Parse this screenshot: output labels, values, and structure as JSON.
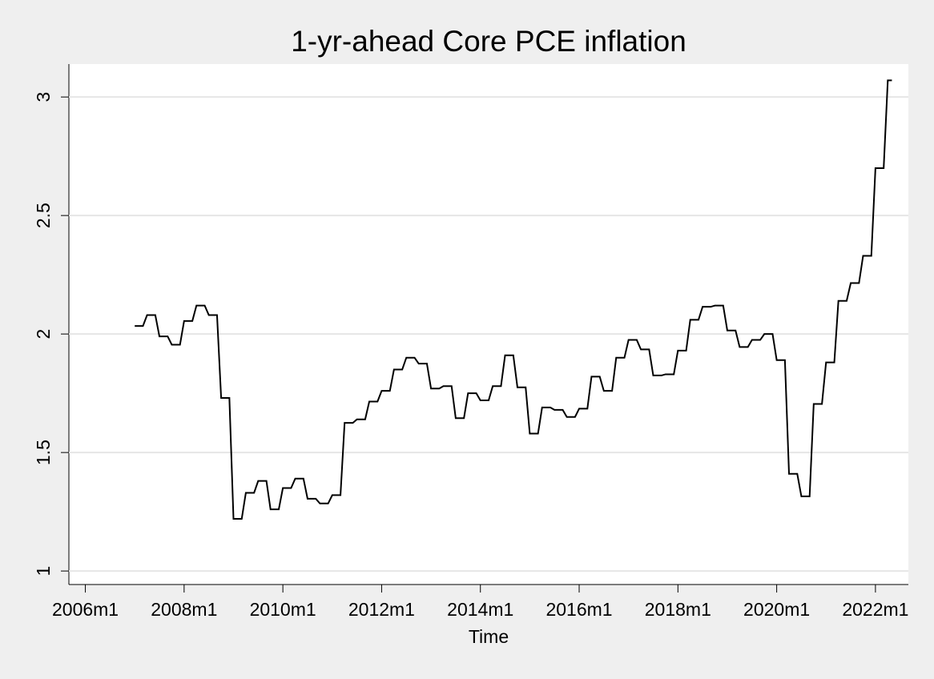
{
  "chart_data": {
    "type": "line",
    "title": "1-yr-ahead Core PCE inflation",
    "x_label": "Time",
    "x": [
      "2007m1",
      "2007m2",
      "2007m3",
      "2007m4",
      "2007m5",
      "2007m6",
      "2007m7",
      "2007m8",
      "2007m9",
      "2007m10",
      "2007m11",
      "2007m12",
      "2008m1",
      "2008m2",
      "2008m3",
      "2008m4",
      "2008m5",
      "2008m6",
      "2008m7",
      "2008m8",
      "2008m9",
      "2008m10",
      "2008m11",
      "2008m12",
      "2009m1",
      "2009m2",
      "2009m3",
      "2009m4",
      "2009m5",
      "2009m6",
      "2009m7",
      "2009m8",
      "2009m9",
      "2009m10",
      "2009m11",
      "2009m12",
      "2010m1",
      "2010m2",
      "2010m3",
      "2010m4",
      "2010m5",
      "2010m6",
      "2010m7",
      "2010m8",
      "2010m9",
      "2010m10",
      "2010m11",
      "2010m12",
      "2011m1",
      "2011m2",
      "2011m3",
      "2011m4",
      "2011m5",
      "2011m6",
      "2011m7",
      "2011m8",
      "2011m9",
      "2011m10",
      "2011m11",
      "2011m12",
      "2012m1",
      "2012m2",
      "2012m3",
      "2012m4",
      "2012m5",
      "2012m6",
      "2012m7",
      "2012m8",
      "2012m9",
      "2012m10",
      "2012m11",
      "2012m12",
      "2013m1",
      "2013m2",
      "2013m3",
      "2013m4",
      "2013m5",
      "2013m6",
      "2013m7",
      "2013m8",
      "2013m9",
      "2013m10",
      "2013m11",
      "2013m12",
      "2014m1",
      "2014m2",
      "2014m3",
      "2014m4",
      "2014m5",
      "2014m6",
      "2014m7",
      "2014m8",
      "2014m9",
      "2014m10",
      "2014m11",
      "2014m12",
      "2015m1",
      "2015m2",
      "2015m3",
      "2015m4",
      "2015m5",
      "2015m6",
      "2015m7",
      "2015m8",
      "2015m9",
      "2015m10",
      "2015m11",
      "2015m12",
      "2016m1",
      "2016m2",
      "2016m3",
      "2016m4",
      "2016m5",
      "2016m6",
      "2016m7",
      "2016m8",
      "2016m9",
      "2016m10",
      "2016m11",
      "2016m12",
      "2017m1",
      "2017m2",
      "2017m3",
      "2017m4",
      "2017m5",
      "2017m6",
      "2017m7",
      "2017m8",
      "2017m9",
      "2017m10",
      "2017m11",
      "2017m12",
      "2018m1",
      "2018m2",
      "2018m3",
      "2018m4",
      "2018m5",
      "2018m6",
      "2018m7",
      "2018m8",
      "2018m9",
      "2018m10",
      "2018m11",
      "2018m12",
      "2019m1",
      "2019m2",
      "2019m3",
      "2019m4",
      "2019m5",
      "2019m6",
      "2019m7",
      "2019m8",
      "2019m9",
      "2019m10",
      "2019m11",
      "2019m12",
      "2020m1",
      "2020m2",
      "2020m3",
      "2020m4",
      "2020m5",
      "2020m6",
      "2020m7",
      "2020m8",
      "2020m9",
      "2020m10",
      "2020m11",
      "2020m12",
      "2021m1",
      "2021m2",
      "2021m3",
      "2021m4",
      "2021m5",
      "2021m6",
      "2021m7",
      "2021m8",
      "2021m9",
      "2021m10",
      "2021m11",
      "2021m12",
      "2022m1",
      "2022m2",
      "2022m3",
      "2022m4",
      "2022m5"
    ],
    "series": [
      {
        "color": "#000000",
        "values": [
          2.034,
          2.034,
          2.034,
          2.08,
          2.08,
          2.08,
          1.99,
          1.99,
          1.99,
          1.955,
          1.955,
          1.955,
          2.055,
          2.055,
          2.055,
          2.12,
          2.12,
          2.12,
          2.08,
          2.08,
          2.08,
          1.73,
          1.73,
          1.73,
          1.22,
          1.22,
          1.22,
          1.33,
          1.33,
          1.33,
          1.38,
          1.38,
          1.38,
          1.26,
          1.26,
          1.26,
          1.35,
          1.35,
          1.35,
          1.39,
          1.39,
          1.39,
          1.305,
          1.305,
          1.305,
          1.285,
          1.285,
          1.285,
          1.32,
          1.32,
          1.32,
          1.625,
          1.625,
          1.625,
          1.64,
          1.64,
          1.64,
          1.715,
          1.715,
          1.715,
          1.76,
          1.76,
          1.76,
          1.85,
          1.85,
          1.85,
          1.9,
          1.9,
          1.9,
          1.875,
          1.875,
          1.875,
          1.77,
          1.77,
          1.77,
          1.78,
          1.78,
          1.78,
          1.645,
          1.645,
          1.645,
          1.75,
          1.75,
          1.75,
          1.72,
          1.72,
          1.72,
          1.78,
          1.78,
          1.78,
          1.91,
          1.91,
          1.91,
          1.775,
          1.775,
          1.775,
          1.58,
          1.58,
          1.58,
          1.69,
          1.69,
          1.69,
          1.68,
          1.68,
          1.68,
          1.65,
          1.65,
          1.65,
          1.685,
          1.685,
          1.685,
          1.82,
          1.82,
          1.82,
          1.76,
          1.76,
          1.76,
          1.9,
          1.9,
          1.9,
          1.975,
          1.975,
          1.975,
          1.935,
          1.935,
          1.935,
          1.825,
          1.825,
          1.825,
          1.83,
          1.83,
          1.83,
          1.93,
          1.93,
          1.93,
          2.06,
          2.06,
          2.06,
          2.115,
          2.115,
          2.115,
          2.12,
          2.12,
          2.12,
          2.015,
          2.015,
          2.015,
          1.945,
          1.945,
          1.945,
          1.975,
          1.975,
          1.975,
          2.0,
          2.0,
          2.0,
          1.89,
          1.89,
          1.89,
          1.41,
          1.41,
          1.41,
          1.315,
          1.315,
          1.315,
          1.705,
          1.705,
          1.705,
          1.88,
          1.88,
          1.88,
          2.14,
          2.14,
          2.14,
          2.215,
          2.215,
          2.215,
          2.33,
          2.33,
          2.33,
          2.7,
          2.7,
          2.7,
          3.07,
          3.07
        ]
      }
    ],
    "xlim": [
      "2005m9",
      "2022m9"
    ],
    "xticks": [
      "2006m1",
      "2008m1",
      "2010m1",
      "2012m1",
      "2014m1",
      "2016m1",
      "2018m1",
      "2020m1",
      "2022m1"
    ],
    "ylim": [
      0.943,
      3.139
    ],
    "yticks": [
      1,
      1.5,
      2,
      2.5,
      3
    ],
    "grid": true
  }
}
